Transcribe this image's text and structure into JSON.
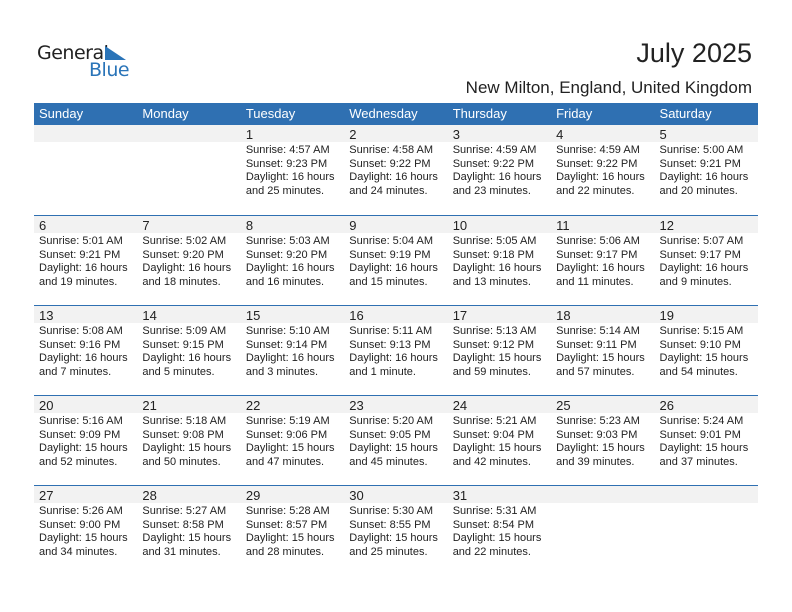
{
  "logo": {
    "general": "General",
    "blue": "Blue",
    "accent": "#2a74b8"
  },
  "header": {
    "title": "July 2025",
    "location": "New Milton, England, United Kingdom"
  },
  "colors": {
    "header_bg": "#2f70b2",
    "band_bg": "#f2f2f2"
  },
  "weekdays": [
    "Sunday",
    "Monday",
    "Tuesday",
    "Wednesday",
    "Thursday",
    "Friday",
    "Saturday"
  ],
  "weeks": [
    [
      null,
      null,
      {
        "day": "1",
        "sunrise": "Sunrise: 4:57 AM",
        "sunset": "Sunset: 9:23 PM",
        "daylight": "Daylight: 16 hours",
        "daylight2": "and 25 minutes."
      },
      {
        "day": "2",
        "sunrise": "Sunrise: 4:58 AM",
        "sunset": "Sunset: 9:22 PM",
        "daylight": "Daylight: 16 hours",
        "daylight2": "and 24 minutes."
      },
      {
        "day": "3",
        "sunrise": "Sunrise: 4:59 AM",
        "sunset": "Sunset: 9:22 PM",
        "daylight": "Daylight: 16 hours",
        "daylight2": "and 23 minutes."
      },
      {
        "day": "4",
        "sunrise": "Sunrise: 4:59 AM",
        "sunset": "Sunset: 9:22 PM",
        "daylight": "Daylight: 16 hours",
        "daylight2": "and 22 minutes."
      },
      {
        "day": "5",
        "sunrise": "Sunrise: 5:00 AM",
        "sunset": "Sunset: 9:21 PM",
        "daylight": "Daylight: 16 hours",
        "daylight2": "and 20 minutes."
      }
    ],
    [
      {
        "day": "6",
        "sunrise": "Sunrise: 5:01 AM",
        "sunset": "Sunset: 9:21 PM",
        "daylight": "Daylight: 16 hours",
        "daylight2": "and 19 minutes."
      },
      {
        "day": "7",
        "sunrise": "Sunrise: 5:02 AM",
        "sunset": "Sunset: 9:20 PM",
        "daylight": "Daylight: 16 hours",
        "daylight2": "and 18 minutes."
      },
      {
        "day": "8",
        "sunrise": "Sunrise: 5:03 AM",
        "sunset": "Sunset: 9:20 PM",
        "daylight": "Daylight: 16 hours",
        "daylight2": "and 16 minutes."
      },
      {
        "day": "9",
        "sunrise": "Sunrise: 5:04 AM",
        "sunset": "Sunset: 9:19 PM",
        "daylight": "Daylight: 16 hours",
        "daylight2": "and 15 minutes."
      },
      {
        "day": "10",
        "sunrise": "Sunrise: 5:05 AM",
        "sunset": "Sunset: 9:18 PM",
        "daylight": "Daylight: 16 hours",
        "daylight2": "and 13 minutes."
      },
      {
        "day": "11",
        "sunrise": "Sunrise: 5:06 AM",
        "sunset": "Sunset: 9:17 PM",
        "daylight": "Daylight: 16 hours",
        "daylight2": "and 11 minutes."
      },
      {
        "day": "12",
        "sunrise": "Sunrise: 5:07 AM",
        "sunset": "Sunset: 9:17 PM",
        "daylight": "Daylight: 16 hours",
        "daylight2": "and 9 minutes."
      }
    ],
    [
      {
        "day": "13",
        "sunrise": "Sunrise: 5:08 AM",
        "sunset": "Sunset: 9:16 PM",
        "daylight": "Daylight: 16 hours",
        "daylight2": "and 7 minutes."
      },
      {
        "day": "14",
        "sunrise": "Sunrise: 5:09 AM",
        "sunset": "Sunset: 9:15 PM",
        "daylight": "Daylight: 16 hours",
        "daylight2": "and 5 minutes."
      },
      {
        "day": "15",
        "sunrise": "Sunrise: 5:10 AM",
        "sunset": "Sunset: 9:14 PM",
        "daylight": "Daylight: 16 hours",
        "daylight2": "and 3 minutes."
      },
      {
        "day": "16",
        "sunrise": "Sunrise: 5:11 AM",
        "sunset": "Sunset: 9:13 PM",
        "daylight": "Daylight: 16 hours",
        "daylight2": "and 1 minute."
      },
      {
        "day": "17",
        "sunrise": "Sunrise: 5:13 AM",
        "sunset": "Sunset: 9:12 PM",
        "daylight": "Daylight: 15 hours",
        "daylight2": "and 59 minutes."
      },
      {
        "day": "18",
        "sunrise": "Sunrise: 5:14 AM",
        "sunset": "Sunset: 9:11 PM",
        "daylight": "Daylight: 15 hours",
        "daylight2": "and 57 minutes."
      },
      {
        "day": "19",
        "sunrise": "Sunrise: 5:15 AM",
        "sunset": "Sunset: 9:10 PM",
        "daylight": "Daylight: 15 hours",
        "daylight2": "and 54 minutes."
      }
    ],
    [
      {
        "day": "20",
        "sunrise": "Sunrise: 5:16 AM",
        "sunset": "Sunset: 9:09 PM",
        "daylight": "Daylight: 15 hours",
        "daylight2": "and 52 minutes."
      },
      {
        "day": "21",
        "sunrise": "Sunrise: 5:18 AM",
        "sunset": "Sunset: 9:08 PM",
        "daylight": "Daylight: 15 hours",
        "daylight2": "and 50 minutes."
      },
      {
        "day": "22",
        "sunrise": "Sunrise: 5:19 AM",
        "sunset": "Sunset: 9:06 PM",
        "daylight": "Daylight: 15 hours",
        "daylight2": "and 47 minutes."
      },
      {
        "day": "23",
        "sunrise": "Sunrise: 5:20 AM",
        "sunset": "Sunset: 9:05 PM",
        "daylight": "Daylight: 15 hours",
        "daylight2": "and 45 minutes."
      },
      {
        "day": "24",
        "sunrise": "Sunrise: 5:21 AM",
        "sunset": "Sunset: 9:04 PM",
        "daylight": "Daylight: 15 hours",
        "daylight2": "and 42 minutes."
      },
      {
        "day": "25",
        "sunrise": "Sunrise: 5:23 AM",
        "sunset": "Sunset: 9:03 PM",
        "daylight": "Daylight: 15 hours",
        "daylight2": "and 39 minutes."
      },
      {
        "day": "26",
        "sunrise": "Sunrise: 5:24 AM",
        "sunset": "Sunset: 9:01 PM",
        "daylight": "Daylight: 15 hours",
        "daylight2": "and 37 minutes."
      }
    ],
    [
      {
        "day": "27",
        "sunrise": "Sunrise: 5:26 AM",
        "sunset": "Sunset: 9:00 PM",
        "daylight": "Daylight: 15 hours",
        "daylight2": "and 34 minutes."
      },
      {
        "day": "28",
        "sunrise": "Sunrise: 5:27 AM",
        "sunset": "Sunset: 8:58 PM",
        "daylight": "Daylight: 15 hours",
        "daylight2": "and 31 minutes."
      },
      {
        "day": "29",
        "sunrise": "Sunrise: 5:28 AM",
        "sunset": "Sunset: 8:57 PM",
        "daylight": "Daylight: 15 hours",
        "daylight2": "and 28 minutes."
      },
      {
        "day": "30",
        "sunrise": "Sunrise: 5:30 AM",
        "sunset": "Sunset: 8:55 PM",
        "daylight": "Daylight: 15 hours",
        "daylight2": "and 25 minutes."
      },
      {
        "day": "31",
        "sunrise": "Sunrise: 5:31 AM",
        "sunset": "Sunset: 8:54 PM",
        "daylight": "Daylight: 15 hours",
        "daylight2": "and 22 minutes."
      },
      null,
      null
    ]
  ]
}
